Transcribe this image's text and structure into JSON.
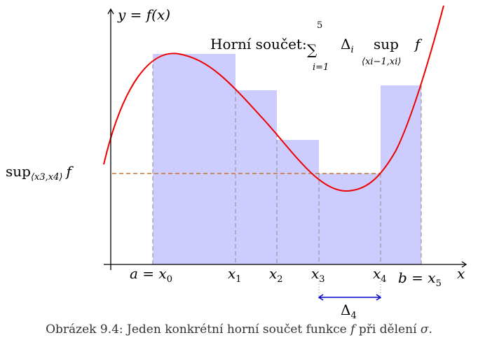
{
  "axes": {
    "y_label": "y = f(x)",
    "x_label": "x"
  },
  "annotation": {
    "label": "Horní součet:",
    "sum": "∑",
    "upper": "5",
    "lower": "i=1",
    "delta": "Δ",
    "delta_sub": "i",
    "sup": "sup",
    "sup_sub": "⟨xi−1,xi⟩",
    "f": "f"
  },
  "sup_label": {
    "sup": "sup",
    "sub": "⟨x3,x4⟩",
    "f": "f"
  },
  "x_labels": [
    {
      "main": "a = x",
      "sub": "0"
    },
    {
      "main": "x",
      "sub": "1"
    },
    {
      "main": "x",
      "sub": "2"
    },
    {
      "main": "x",
      "sub": "3"
    },
    {
      "main": "x",
      "sub": "4"
    },
    {
      "main": "b = x",
      "sub": "5"
    }
  ],
  "delta4": {
    "main": "Δ",
    "sub": "4"
  },
  "caption": {
    "prefix": "Obrázek 9.4: Jeden konkrétní horní součet funkce ",
    "f": "f",
    "middle": " při dělení ",
    "sigma": "σ",
    "end": "."
  }
}
